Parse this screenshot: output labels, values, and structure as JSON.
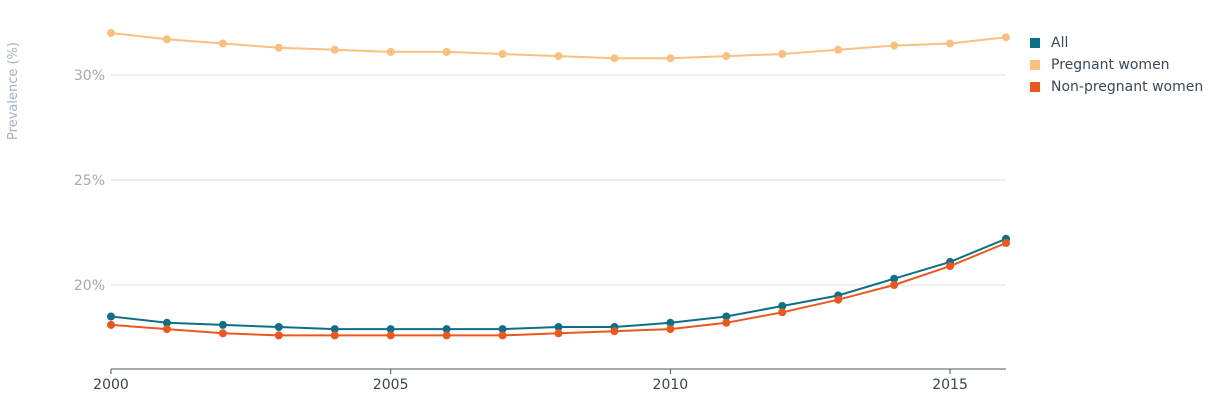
{
  "chart_data": {
    "type": "line",
    "title": "",
    "xlabel": "",
    "ylabel": "Prevalence (%)",
    "x": [
      2000,
      2001,
      2002,
      2003,
      2004,
      2005,
      2006,
      2007,
      2008,
      2009,
      2010,
      2011,
      2012,
      2013,
      2014,
      2015,
      2016
    ],
    "xlim": [
      2000,
      2016
    ],
    "ylim": [
      16,
      32.5
    ],
    "x_ticks": [
      2000,
      2005,
      2010,
      2015
    ],
    "x_tick_labels": [
      "2000",
      "2005",
      "2010",
      "2015"
    ],
    "y_ticks": [
      20,
      25,
      30
    ],
    "y_tick_labels": [
      "20%",
      "25%",
      "30%"
    ],
    "grid": "horizontal",
    "legend_position": "right",
    "series": [
      {
        "name": "All",
        "color": "#0e6f86",
        "values": [
          18.5,
          18.2,
          18.1,
          18.0,
          17.9,
          17.9,
          17.9,
          17.9,
          18.0,
          18.0,
          18.2,
          18.5,
          19.0,
          19.5,
          20.3,
          21.1,
          22.2
        ]
      },
      {
        "name": "Pregnant women",
        "color": "#f9c07f",
        "values": [
          32.0,
          31.7,
          31.5,
          31.3,
          31.2,
          31.1,
          31.1,
          31.0,
          30.9,
          30.8,
          30.8,
          30.9,
          31.0,
          31.2,
          31.4,
          31.5,
          31.8
        ]
      },
      {
        "name": "Non-pregnant women",
        "color": "#e8591f",
        "values": [
          18.1,
          17.9,
          17.7,
          17.6,
          17.6,
          17.6,
          17.6,
          17.6,
          17.7,
          17.8,
          17.9,
          18.2,
          18.7,
          19.3,
          20.0,
          20.9,
          22.0
        ]
      }
    ]
  }
}
